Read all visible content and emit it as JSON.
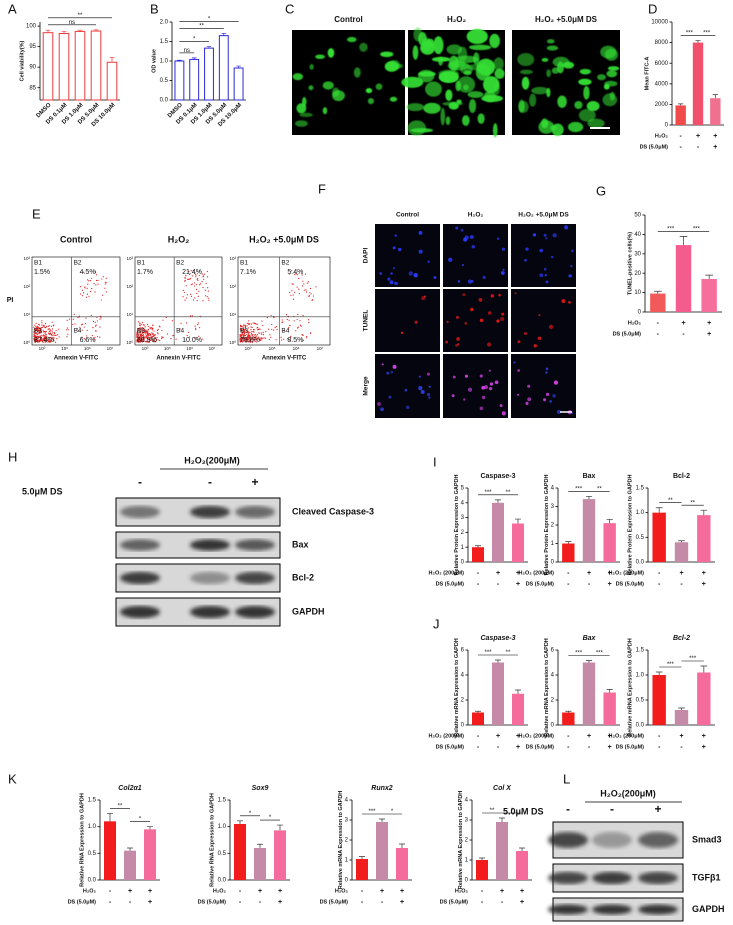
{
  "panels": [
    "A",
    "B",
    "C",
    "D",
    "E",
    "F",
    "G",
    "H",
    "I",
    "J",
    "K",
    "L"
  ],
  "chart_data": [
    {
      "type": "bar",
      "bar_style": "outline",
      "color": "#f03c3c",
      "y_label": "Cell viability(%)",
      "categories": [
        "DMSO",
        "DS 0.1μM",
        "DS 1.0μM",
        "DS 5.0μM",
        "DS 10.0μM"
      ],
      "values": [
        98.4,
        98.2,
        98.7,
        98.8,
        91.2
      ],
      "errors": [
        0.6,
        0.5,
        0.3,
        0.3,
        1.2
      ],
      "ylim": [
        82,
        101
      ],
      "yticks": [
        85,
        90,
        95,
        100
      ],
      "annotations": [
        "ns",
        "**"
      ]
    },
    {
      "type": "bar",
      "bar_style": "outline",
      "color": "#2a2ad8",
      "y_label": "OD value",
      "categories": [
        "DMSO",
        "DS 0.1μM",
        "DS 1.0μM",
        "DS 5.0μM",
        "DS 10.0μM"
      ],
      "values": [
        1.0,
        1.04,
        1.33,
        1.65,
        0.82
      ],
      "errors": [
        0.02,
        0.04,
        0.04,
        0.06,
        0.05
      ],
      "ylim": [
        0,
        2
      ],
      "yticks": [
        {
          "value": 0,
          "label": "0.0"
        },
        {
          "value": 0.5,
          "label": "0.5"
        },
        {
          "value": 1,
          "label": "1.0"
        },
        {
          "value": 1.5,
          "label": "1.5"
        },
        {
          "value": 2,
          "label": "2.0"
        }
      ],
      "annotations": [
        "ns",
        "*",
        "**",
        "*"
      ]
    },
    {
      "type": "bar",
      "y_label": "Mean FITC-A",
      "values": [
        1900,
        8000,
        2600
      ],
      "errors": [
        150,
        200,
        350
      ],
      "colors": [
        "#f04a4a",
        "#f0506c",
        "#f07090"
      ],
      "ylim": [
        0,
        10000
      ],
      "yticks": [
        0,
        2000,
        4000,
        6000,
        8000,
        10000
      ],
      "conditions": [
        {
          "label": "H₂O₂",
          "marks": [
            "-",
            "+",
            "+"
          ]
        },
        {
          "label": "DS (5.0μM)",
          "marks": [
            "-",
            "-",
            "+"
          ]
        }
      ],
      "annotations": [
        "***",
        "***"
      ]
    },
    {
      "type": "bar",
      "y_label": "TUNEL-positive cells(%)",
      "values": [
        9.5,
        34.5,
        17
      ],
      "errors": [
        1.2,
        4.5,
        2
      ],
      "colors": [
        "#f25a5a",
        "#f45c8e",
        "#f56e9c"
      ],
      "ylim": [
        0,
        50
      ],
      "yticks": [
        0,
        10,
        20,
        30,
        40,
        50
      ],
      "conditions": [
        {
          "label": "H₂O₂",
          "marks": [
            "-",
            "+",
            "+"
          ]
        },
        {
          "label": "DS (5.0μM)",
          "marks": [
            "-",
            "-",
            "+"
          ]
        }
      ],
      "annotations": [
        "***",
        "***"
      ]
    },
    {
      "type": "bar",
      "title": "Caspase-3",
      "y_label": "Relative Protein Expression to GAPDH",
      "values": [
        1,
        4,
        2.6
      ],
      "errors": [
        0.1,
        0.2,
        0.3
      ],
      "colors": [
        "#f21c1c",
        "#c48aa8",
        "#f56b9b"
      ],
      "ylim": [
        0,
        5
      ],
      "yticks": [
        0,
        1,
        2,
        3,
        4,
        5
      ],
      "conditions": [
        {
          "label": "H₂O₂ (200μM)",
          "marks": [
            "-",
            "+",
            "+"
          ]
        },
        {
          "label": "DS (5.0μM)",
          "marks": [
            "-",
            "-",
            "+"
          ]
        }
      ],
      "annotations": [
        "***",
        "**"
      ]
    },
    {
      "type": "bar",
      "title": "Bax",
      "y_label": "Relative Protein Expression to GAPDH",
      "values": [
        1,
        3.4,
        2.1
      ],
      "errors": [
        0.1,
        0.15,
        0.2
      ],
      "colors": [
        "#f21c1c",
        "#c48aa8",
        "#f56b9b"
      ],
      "ylim": [
        0,
        4
      ],
      "yticks": [
        0,
        1,
        2,
        3,
        4
      ],
      "conditions": [
        {
          "label": "H₂O₂ (200μM)",
          "marks": [
            "-",
            "+",
            "+"
          ]
        },
        {
          "label": "DS (5.0μM)",
          "marks": [
            "-",
            "-",
            "+"
          ]
        }
      ],
      "annotations": [
        "***",
        "**"
      ]
    },
    {
      "type": "bar",
      "title": "Bcl-2",
      "y_label": "Relative Protein Expression to GAPDH",
      "values": [
        1,
        0.4,
        0.95
      ],
      "errors": [
        0.1,
        0.03,
        0.1
      ],
      "colors": [
        "#f21c1c",
        "#c48aa8",
        "#f56b9b"
      ],
      "ylim": [
        0,
        1.5
      ],
      "yticks": [
        {
          "value": 0,
          "label": "0.0"
        },
        {
          "value": 0.5,
          "label": "0.5"
        },
        {
          "value": 1,
          "label": "1.0"
        },
        {
          "value": 1.5,
          "label": "1.5"
        }
      ],
      "conditions": [
        {
          "label": "H₂O₂ (200μM)",
          "marks": [
            "-",
            "+",
            "+"
          ]
        },
        {
          "label": "DS (5.0μM)",
          "marks": [
            "-",
            "-",
            "+"
          ]
        }
      ],
      "annotations": [
        "**",
        "**"
      ]
    },
    {
      "type": "bar",
      "title": "Caspase-3",
      "title_style": "italic",
      "y_label": "Relative mRNA Expression to GAPDH",
      "values": [
        1,
        5,
        2.5
      ],
      "errors": [
        0.1,
        0.2,
        0.3
      ],
      "colors": [
        "#f21c1c",
        "#c48aa8",
        "#f56b9b"
      ],
      "ylim": [
        0,
        6
      ],
      "yticks": [
        0,
        2,
        4,
        6
      ],
      "conditions": [
        {
          "label": "H₂O₂ (200μM)",
          "marks": [
            "-",
            "+",
            "+"
          ]
        },
        {
          "label": "DS (5.0μM)",
          "marks": [
            "-",
            "-",
            "+"
          ]
        }
      ],
      "annotations": [
        "***",
        "**"
      ]
    },
    {
      "type": "bar",
      "title": "Bax",
      "title_style": "italic",
      "y_label": "Relative mRNA Expression to GAPDH",
      "values": [
        1,
        5,
        2.6
      ],
      "errors": [
        0.1,
        0.15,
        0.25
      ],
      "colors": [
        "#f21c1c",
        "#c48aa8",
        "#f56b9b"
      ],
      "ylim": [
        0,
        6
      ],
      "yticks": [
        0,
        2,
        4,
        6
      ],
      "conditions": [
        {
          "label": "H₂O₂ (200μM)",
          "marks": [
            "-",
            "+",
            "+"
          ]
        },
        {
          "label": "DS (5.0μM)",
          "marks": [
            "-",
            "-",
            "+"
          ]
        }
      ],
      "annotations": [
        "***",
        "***"
      ]
    },
    {
      "type": "bar",
      "title": "Bcl-2",
      "title_style": "italic",
      "y_label": "Relative mRNA Expression to GAPDH",
      "values": [
        1,
        0.3,
        1.05
      ],
      "errors": [
        0.06,
        0.04,
        0.13
      ],
      "colors": [
        "#f21c1c",
        "#c48aa8",
        "#f56b9b"
      ],
      "ylim": [
        0,
        1.5
      ],
      "yticks": [
        {
          "value": 0,
          "label": "0.0"
        },
        {
          "value": 0.5,
          "label": "0.5"
        },
        {
          "value": 1,
          "label": "1.0"
        },
        {
          "value": 1.5,
          "label": "1.5"
        }
      ],
      "conditions": [
        {
          "label": "H₂O₂ (200μM)",
          "marks": [
            "-",
            "+",
            "+"
          ]
        },
        {
          "label": "DS (5.0μM)",
          "marks": [
            "-",
            "-",
            "+"
          ]
        }
      ],
      "annotations": [
        "***",
        "***"
      ]
    },
    {
      "type": "bar",
      "title": "Col2α1",
      "title_style": "italic",
      "y_label": "Relative RNA Expression to GAPDH",
      "values": [
        1.1,
        0.55,
        0.95
      ],
      "errors": [
        0.15,
        0.05,
        0.05
      ],
      "colors": [
        "#f21c1c",
        "#c48aa8",
        "#f56b9b"
      ],
      "ylim": [
        0,
        1.5
      ],
      "yticks": [
        {
          "value": 0,
          "label": "0.0"
        },
        {
          "value": 0.5,
          "label": "0.5"
        },
        {
          "value": 1,
          "label": "1.0"
        },
        {
          "value": 1.5,
          "label": "1.5"
        }
      ],
      "conditions": [
        {
          "label": "H₂O₂",
          "marks": [
            "-",
            "+",
            "+"
          ]
        },
        {
          "label": "DS (5.0μM)",
          "marks": [
            "-",
            "-",
            "+"
          ]
        }
      ],
      "annotations": [
        "**",
        "*"
      ]
    },
    {
      "type": "bar",
      "title": "Sox9",
      "title_style": "italic",
      "y_label": "Relative RNA Expression to GAPDH",
      "values": [
        1.05,
        0.6,
        0.93
      ],
      "errors": [
        0.06,
        0.07,
        0.1
      ],
      "colors": [
        "#f21c1c",
        "#c48aa8",
        "#f56b9b"
      ],
      "ylim": [
        0,
        1.5
      ],
      "yticks": [
        {
          "value": 0,
          "label": "0.0"
        },
        {
          "value": 0.5,
          "label": "0.5"
        },
        {
          "value": 1,
          "label": "1.0"
        },
        {
          "value": 1.5,
          "label": "1.5"
        }
      ],
      "conditions": [
        {
          "label": "H₂O₂",
          "marks": [
            "-",
            "+",
            "+"
          ]
        },
        {
          "label": "DS (5.0μM)",
          "marks": [
            "-",
            "-",
            "+"
          ]
        }
      ],
      "annotations": [
        "*",
        "*"
      ]
    },
    {
      "type": "bar",
      "title": "Runx2",
      "title_style": "italic",
      "y_label": "Relative mRNA Expression to GAPDH",
      "values": [
        1.05,
        2.9,
        1.6
      ],
      "errors": [
        0.12,
        0.15,
        0.2
      ],
      "colors": [
        "#f21c1c",
        "#c48aa8",
        "#f56b9b"
      ],
      "ylim": [
        0,
        4
      ],
      "yticks": [
        0,
        1,
        2,
        3,
        4
      ],
      "conditions": [
        {
          "label": "H₂O₂",
          "marks": [
            "-",
            "+",
            "+"
          ]
        },
        {
          "label": "DS (5.0μM)",
          "marks": [
            "-",
            "-",
            "+"
          ]
        }
      ],
      "annotations": [
        "***",
        "*"
      ]
    },
    {
      "type": "bar",
      "title": "Col X",
      "title_style": "italic",
      "y_label": "Relative mRNA Expression to GAPDH",
      "values": [
        1,
        2.9,
        1.45
      ],
      "errors": [
        0.1,
        0.2,
        0.15
      ],
      "colors": [
        "#f21c1c",
        "#c48aa8",
        "#f56b9b"
      ],
      "ylim": [
        0,
        4
      ],
      "yticks": [
        0,
        1,
        2,
        3,
        4
      ],
      "conditions": [
        {
          "label": "H₂O₂",
          "marks": [
            "-",
            "+",
            "+"
          ]
        },
        {
          "label": "DS (5.0μM)",
          "marks": [
            "-",
            "-",
            "+"
          ]
        }
      ],
      "annotations": [
        "**",
        "*"
      ]
    }
  ],
  "microscopy": {
    "columns": [
      "Control",
      "H₂O₂",
      "H₂O₂ +5.0μM DS"
    ]
  },
  "flow": {
    "y_label": "PI",
    "x_label": "Annexin V-FITC",
    "y_ticks": [
      "10³",
      "10²",
      "10¹",
      "10⁰"
    ],
    "x_ticks": [
      "10⁰",
      "10⁵",
      "10⁶",
      "10⁷"
    ],
    "plots": [
      {
        "title": "Control",
        "quadrants": [
          {
            "name": "B1",
            "value": "1.5%"
          },
          {
            "name": "B2",
            "value": "4.5%"
          },
          {
            "name": "B3",
            "value": "87.4%"
          },
          {
            "name": "B4",
            "value": "6.6%"
          }
        ]
      },
      {
        "title": "H₂O₂",
        "quadrants": [
          {
            "name": "B1",
            "value": "1.7%"
          },
          {
            "name": "B2",
            "value": "21.4%"
          },
          {
            "name": "B3",
            "value": "66.9%"
          },
          {
            "name": "B4",
            "value": "10.0%"
          }
        ]
      },
      {
        "title": "H₂O₂ +5.0μM DS",
        "quadrants": [
          {
            "name": "B1",
            "value": "7.1%"
          },
          {
            "name": "B2",
            "value": "5.4%"
          },
          {
            "name": "B3",
            "value": "79.0%"
          },
          {
            "name": "B4",
            "value": "8.5%"
          }
        ]
      }
    ]
  },
  "tunel": {
    "columns": [
      "Control",
      "H₂O₂",
      "H₂O₂ +5.0μM DS"
    ],
    "rows": [
      "DAPI",
      "TUNEL",
      "Merge"
    ]
  },
  "blot_h": {
    "header": "H₂O₂(200μM)",
    "row_label": "5.0μM DS",
    "signs": [
      "-",
      "-",
      "+"
    ],
    "bands": [
      "Cleaved Caspase-3",
      "Bax",
      "Bcl-2",
      "GAPDH"
    ]
  },
  "blot_l": {
    "header": "H₂O₂(200μM)",
    "row_label": "5.0μM DS",
    "signs": [
      "-",
      "-",
      "+"
    ],
    "bands": [
      "Smad3",
      "TGFβ1",
      "GAPDH"
    ]
  }
}
